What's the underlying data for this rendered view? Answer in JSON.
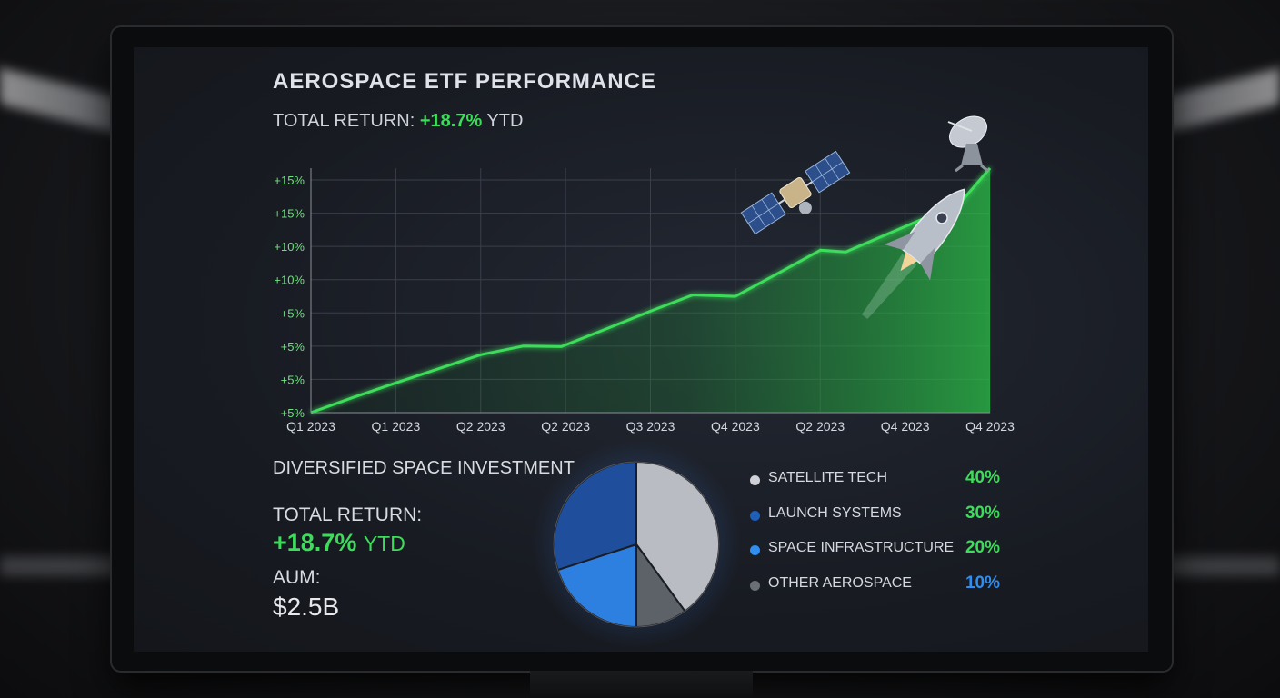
{
  "dashboard": {
    "title": "AEROSPACE ETF PERFORMANCE",
    "total_return_label": "TOTAL RETURN:",
    "total_return_value": "+18.7%",
    "total_return_suffix": "YTD"
  },
  "chart_data": {
    "type": "area",
    "y_tick_labels": [
      "+15%",
      "+15%",
      "+10%",
      "+10%",
      "+5%",
      "+5%",
      "+5%",
      "+5%"
    ],
    "x_tick_labels": [
      "Q1 2023",
      "Q1 2023",
      "Q2 2023",
      "Q2 2023",
      "Q3 2023",
      "Q4 2023",
      "Q2 2023",
      "Q4 2023",
      "Q4 2023"
    ],
    "series": [
      {
        "values": [
          {
            "x": 0.0,
            "y": 0.0
          },
          {
            "x": 0.5,
            "y": 1.17
          },
          {
            "x": 1.0,
            "y": 2.27
          },
          {
            "x": 1.5,
            "y": 3.35
          },
          {
            "x": 2.0,
            "y": 4.43
          },
          {
            "x": 2.5,
            "y": 5.09
          },
          {
            "x": 2.95,
            "y": 5.05
          },
          {
            "x": 3.5,
            "y": 6.46
          },
          {
            "x": 4.0,
            "y": 7.76
          },
          {
            "x": 4.5,
            "y": 9.0
          },
          {
            "x": 5.0,
            "y": 8.89
          },
          {
            "x": 5.5,
            "y": 10.64
          },
          {
            "x": 6.0,
            "y": 12.42
          },
          {
            "x": 6.3,
            "y": 12.29
          },
          {
            "x": 6.8,
            "y": 13.68
          },
          {
            "x": 7.2,
            "y": 14.79
          },
          {
            "x": 7.45,
            "y": 14.53
          },
          {
            "x": 8.0,
            "y": 18.7
          }
        ]
      }
    ],
    "ylim": [
      0,
      18.7
    ],
    "grid": true,
    "line_color": "#3ddc5a"
  },
  "allocation": {
    "title": "DIVERSIFIED SPACE INVESTMENT",
    "total_return_label": "TOTAL RETURN:",
    "total_return_value": "+18.7%",
    "total_return_suffix": "YTD",
    "aum_label": "AUM:",
    "aum_value": "$2.5B",
    "items": [
      {
        "label": "SATELLITE TECH",
        "value": "40%",
        "percent": 40,
        "dot_color": "#cfd1d6",
        "value_color": "#3ddc5a"
      },
      {
        "label": "LAUNCH SYSTEMS",
        "value": "30%",
        "percent": 30,
        "dot_color": "#1f5fb8",
        "value_color": "#3ddc5a"
      },
      {
        "label": "SPACE INFRASTRUCTURE",
        "value": "20%",
        "percent": 20,
        "dot_color": "#2f8ef0",
        "value_color": "#3ddc5a"
      },
      {
        "label": "OTHER AEROSPACE",
        "value": "10%",
        "percent": 10,
        "dot_color": "#6b6e75",
        "value_color": "#2f8ef0"
      }
    ]
  },
  "colors": {
    "accent_green": "#3ddc5a",
    "accent_blue": "#2f8ef0"
  },
  "icons": [
    "satellite-icon",
    "satellite-dish-icon",
    "rocket-icon"
  ]
}
